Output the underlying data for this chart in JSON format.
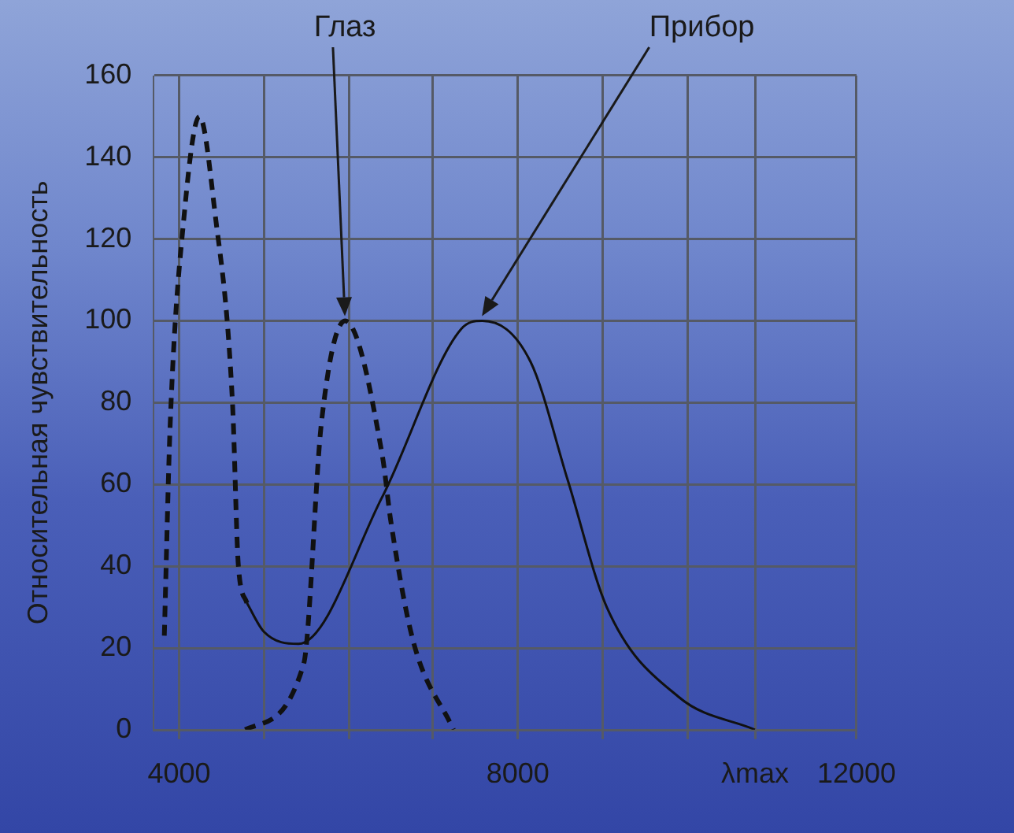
{
  "chart_data": {
    "type": "line",
    "ylabel": "Относительная чувствительность",
    "xlim": [
      3700,
      12000
    ],
    "xticks": [
      4000,
      {
        "value": 5000,
        "label": null
      },
      {
        "value": 6000,
        "label": null
      },
      {
        "value": 7000,
        "label": null
      },
      8000,
      {
        "value": 9000,
        "label": null
      },
      {
        "value": 10000,
        "label": null
      },
      {
        "value": 10800,
        "label": "λmax"
      },
      12000
    ],
    "ylim": [
      0,
      160
    ],
    "yticks": [
      0,
      20,
      40,
      60,
      80,
      100,
      120,
      140,
      160
    ],
    "grid": true,
    "legend": false,
    "marker": "none",
    "series": [
      {
        "color": "#111111",
        "line_style": "dashed",
        "x": [
          3825,
          3895,
          4065,
          4240,
          4420,
          4630,
          4700,
          4800
        ],
        "values": [
          23,
          75,
          127,
          150,
          127,
          80,
          40,
          31
        ]
      },
      {
        "color": "#111111",
        "line_style": "dashed",
        "x": [
          4780,
          5470,
          5680,
          5960,
          6400,
          6500,
          6760,
          7240
        ],
        "values": [
          0,
          16,
          75,
          100,
          67,
          51,
          22,
          0
        ]
      },
      {
        "color": "#111111",
        "line_style": "solid",
        "x": [
          4800,
          5000,
          5410,
          6400,
          7330,
          7580,
          8150,
          8590,
          9050,
          9900,
          10800
        ],
        "values": [
          31,
          24,
          21,
          57,
          98,
          100,
          90,
          61,
          30,
          8,
          0
        ]
      }
    ],
    "annotations": [
      "Глаз",
      "Прибор"
    ]
  }
}
